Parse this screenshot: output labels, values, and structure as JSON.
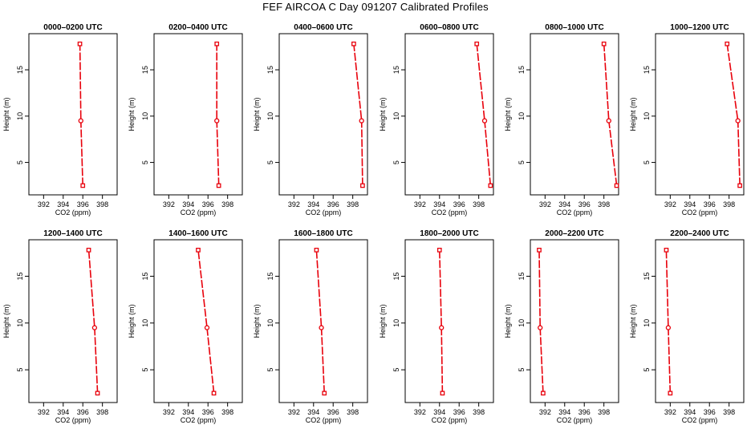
{
  "title": "FEF AIRCOA C  Day 091207  Calibrated Profiles",
  "colors": {
    "profile": "#e8000b",
    "axis": "#000000"
  },
  "chart_data": {
    "type": "line",
    "xlabel": "CO2 (ppm)",
    "ylabel": "Height (m)",
    "xlim": [
      390.5,
      399.5
    ],
    "ylim": [
      1.5,
      18.9
    ],
    "x_ticks": [
      392,
      394,
      396,
      398
    ],
    "y_ticks": [
      5,
      10,
      15
    ],
    "heights": [
      2.5,
      9.5,
      17.8
    ],
    "panels": [
      {
        "title": "0000–0200 UTC",
        "co2": [
          396.0,
          395.8,
          395.7
        ]
      },
      {
        "title": "0200–0400 UTC",
        "co2": [
          397.1,
          396.9,
          396.9
        ]
      },
      {
        "title": "0400–0600 UTC",
        "co2": [
          399.0,
          398.9,
          398.1
        ]
      },
      {
        "title": "0600–0800 UTC",
        "co2": [
          399.2,
          398.6,
          397.8
        ]
      },
      {
        "title": "0800–1000 UTC",
        "co2": [
          399.3,
          398.5,
          398.0
        ]
      },
      {
        "title": "1000–1200 UTC",
        "co2": [
          399.1,
          398.9,
          397.8
        ]
      },
      {
        "title": "1200–1400 UTC",
        "co2": [
          397.5,
          397.2,
          396.6
        ]
      },
      {
        "title": "1400–1600 UTC",
        "co2": [
          396.6,
          395.9,
          395.0
        ]
      },
      {
        "title": "1600–1800 UTC",
        "co2": [
          395.1,
          394.8,
          394.3
        ]
      },
      {
        "title": "1800–2000 UTC",
        "co2": [
          394.3,
          394.2,
          394.0
        ]
      },
      {
        "title": "2000–2200 UTC",
        "co2": [
          391.8,
          391.5,
          391.4
        ]
      },
      {
        "title": "2200–2400 UTC",
        "co2": [
          392.0,
          391.8,
          391.6
        ]
      }
    ]
  }
}
